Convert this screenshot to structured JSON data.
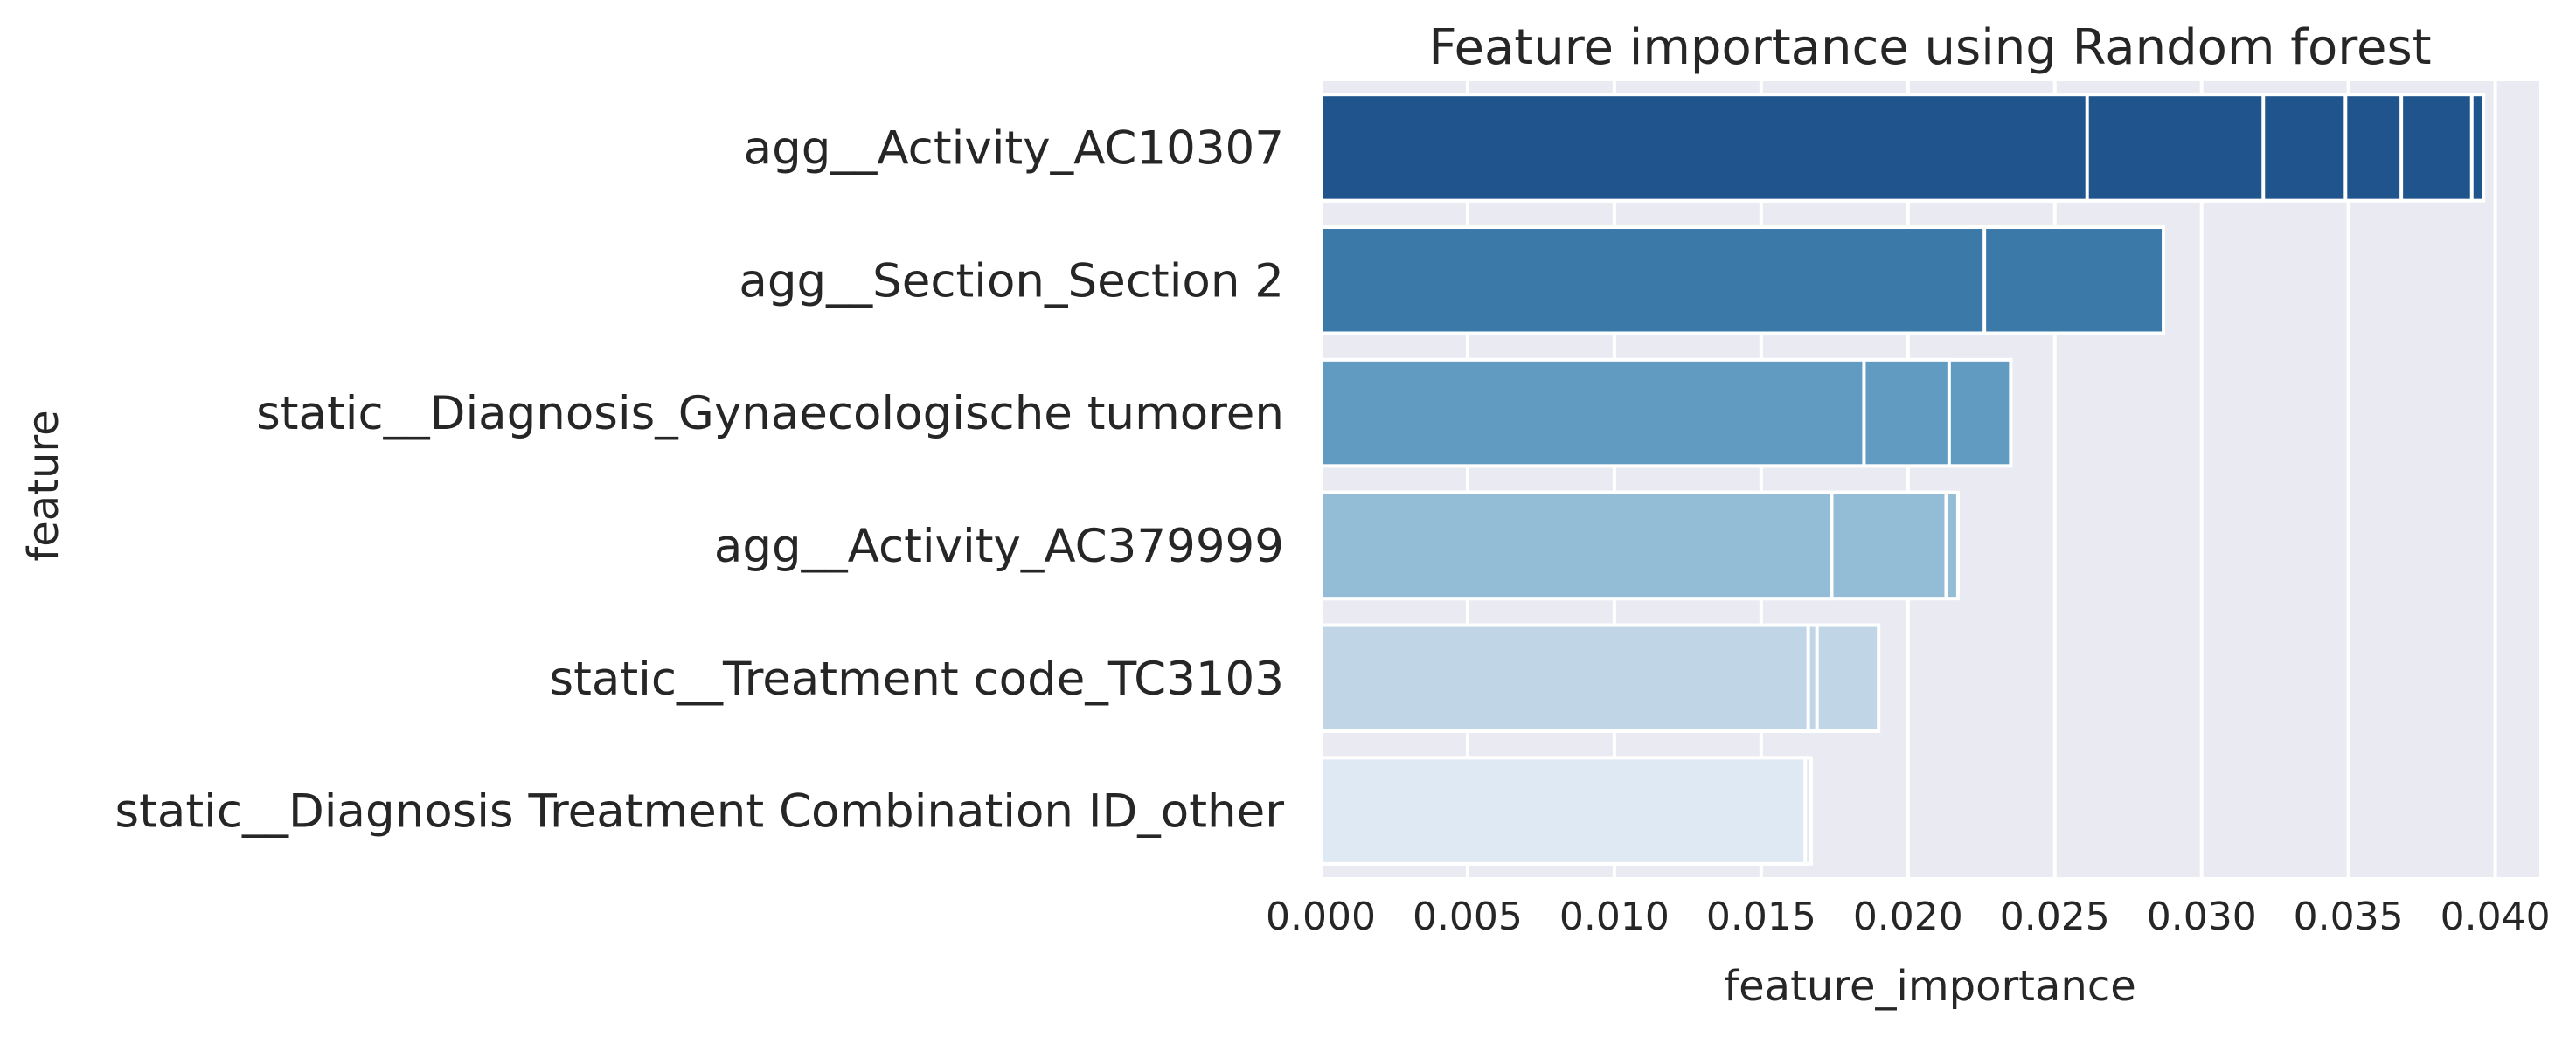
{
  "chart_data": {
    "type": "bar",
    "orientation": "horizontal",
    "title": "Feature importance using Random forest",
    "xlabel": "feature_importance",
    "ylabel": "feature",
    "xlim": [
      0,
      0.0415
    ],
    "xticks": [
      0.0,
      0.005,
      0.01,
      0.015,
      0.02,
      0.025,
      0.03,
      0.035,
      0.04
    ],
    "xtick_labels": [
      "0.000",
      "0.005",
      "0.010",
      "0.015",
      "0.020",
      "0.025",
      "0.030",
      "0.035",
      "0.040"
    ],
    "grid": true,
    "background": "#eaeaf2",
    "categories": [
      "agg__Activity_AC10307",
      "agg__Section_Section 2",
      "static__Diagnosis_Gynaecologische tumoren",
      "agg__Activity_AC379999",
      "static__Treatment code_TC3103",
      "static__Diagnosis Treatment Combination ID_other"
    ],
    "colors": [
      "#1f558c",
      "#3b79a9",
      "#629bc1",
      "#93bcd6",
      "#c0d6e6",
      "#dfe9f4"
    ],
    "bars": [
      {
        "category": "agg__Activity_AC10307",
        "values": [
          0.0396,
          0.0392,
          0.0368,
          0.0349,
          0.0321,
          0.0261
        ]
      },
      {
        "category": "agg__Section_Section 2",
        "values": [
          0.0287,
          0.0226
        ]
      },
      {
        "category": "static__Diagnosis_Gynaecologische tumoren",
        "values": [
          0.0235,
          0.0214,
          0.0185
        ]
      },
      {
        "category": "agg__Activity_AC379999",
        "values": [
          0.0217,
          0.0213,
          0.0174
        ]
      },
      {
        "category": "static__Treatment code_TC3103",
        "values": [
          0.019,
          0.0169,
          0.0166
        ]
      },
      {
        "category": "static__Diagnosis Treatment Combination ID_other",
        "values": [
          0.0167,
          0.0165
        ]
      }
    ]
  }
}
